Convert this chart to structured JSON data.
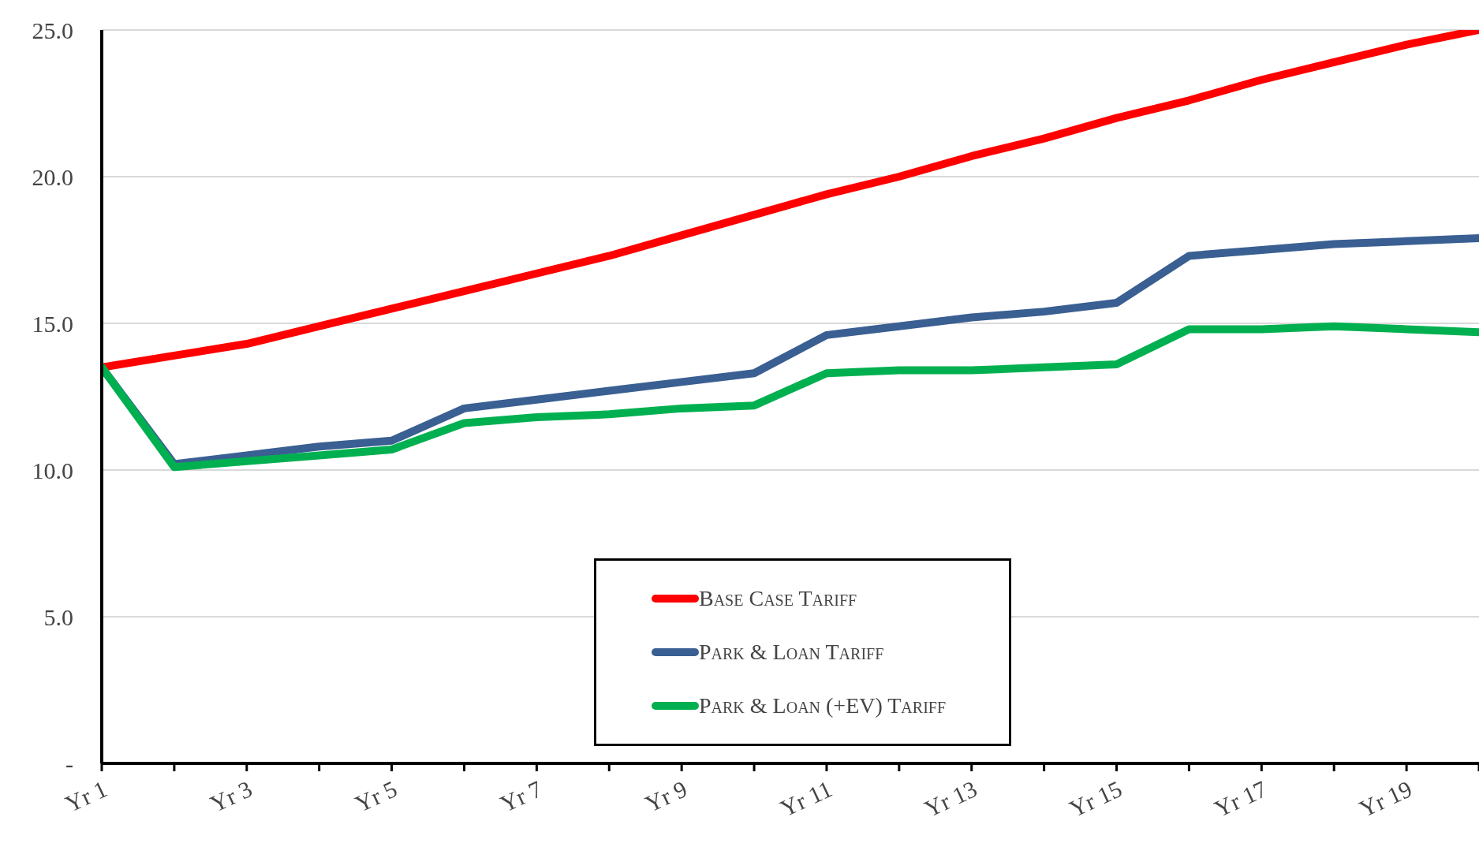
{
  "chart_data": {
    "type": "line",
    "categories": [
      "Yr 1",
      null,
      "Yr 3",
      null,
      "Yr 5",
      null,
      "Yr 7",
      null,
      "Yr 9",
      null,
      "Yr 11",
      null,
      "Yr 13",
      null,
      "Yr 15",
      null,
      "Yr 17",
      null,
      "Yr 19",
      null
    ],
    "series": [
      {
        "name": "Base Case Tariff",
        "color": "#ff0000",
        "values": [
          13.5,
          13.9,
          14.3,
          14.9,
          15.5,
          16.1,
          16.7,
          17.3,
          18.0,
          18.7,
          19.4,
          20.0,
          20.7,
          21.3,
          22.0,
          22.6,
          23.3,
          23.9,
          24.5,
          25.0
        ]
      },
      {
        "name": "Park & Loan Tariff",
        "color": "#3a5f92",
        "values": [
          13.5,
          10.2,
          10.5,
          10.8,
          11.0,
          12.1,
          12.4,
          12.7,
          13.0,
          13.3,
          14.6,
          14.9,
          15.2,
          15.4,
          15.7,
          17.3,
          17.5,
          17.7,
          17.8,
          17.9
        ]
      },
      {
        "name": "Park & Loan (+EV) Tariff",
        "color": "#00b050",
        "values": [
          13.5,
          10.1,
          10.3,
          10.5,
          10.7,
          11.6,
          11.8,
          11.9,
          12.1,
          12.2,
          13.3,
          13.4,
          13.4,
          13.5,
          13.6,
          14.8,
          14.8,
          14.9,
          14.8,
          14.7
        ]
      }
    ],
    "ylim": [
      0,
      25
    ],
    "yticks": [
      {
        "value": 0,
        "label": "-"
      },
      {
        "value": 5,
        "label": "5.0"
      },
      {
        "value": 10,
        "label": "10.0"
      },
      {
        "value": 15,
        "label": "15.0"
      },
      {
        "value": 20,
        "label": "20.0"
      },
      {
        "value": 25,
        "label": "25.0"
      }
    ],
    "grid": "y",
    "legend": "bottom",
    "marker": "none",
    "line_style": "solid"
  }
}
